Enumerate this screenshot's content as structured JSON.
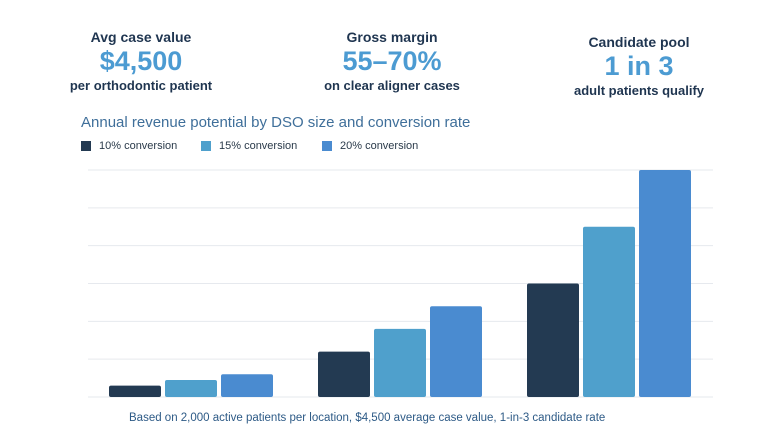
{
  "stats": [
    {
      "label": "Avg case value",
      "value": "$4,500",
      "sub": "per orthodontic patient"
    },
    {
      "label": "Gross margin",
      "value": "55–70%",
      "sub": "on clear aligner cases"
    },
    {
      "label": "Candidate pool",
      "value": "1 in 3",
      "sub": "adult patients qualify"
    }
  ],
  "footnote": "Based on 2,000 active patients per location, $4,500 average case value, 1-in-3 candidate rate",
  "chart_data": {
    "type": "bar",
    "title": "Annual revenue potential by DSO size and conversion rate",
    "xlabel": "",
    "ylabel": "",
    "categories": [
      "",
      "",
      ""
    ],
    "grid": true,
    "legend_placement": "top-left",
    "ylim": [
      0,
      6
    ],
    "series": [
      {
        "name": "10% conversion",
        "color": "#233a52",
        "values": [
          0.3,
          1.2,
          3.0
        ]
      },
      {
        "name": "15% conversion",
        "color": "#4fa0cc",
        "values": [
          0.45,
          1.8,
          4.5
        ]
      },
      {
        "name": "20% conversion",
        "color": "#4a8bd0",
        "values": [
          0.6,
          2.4,
          6.0
        ]
      }
    ]
  }
}
